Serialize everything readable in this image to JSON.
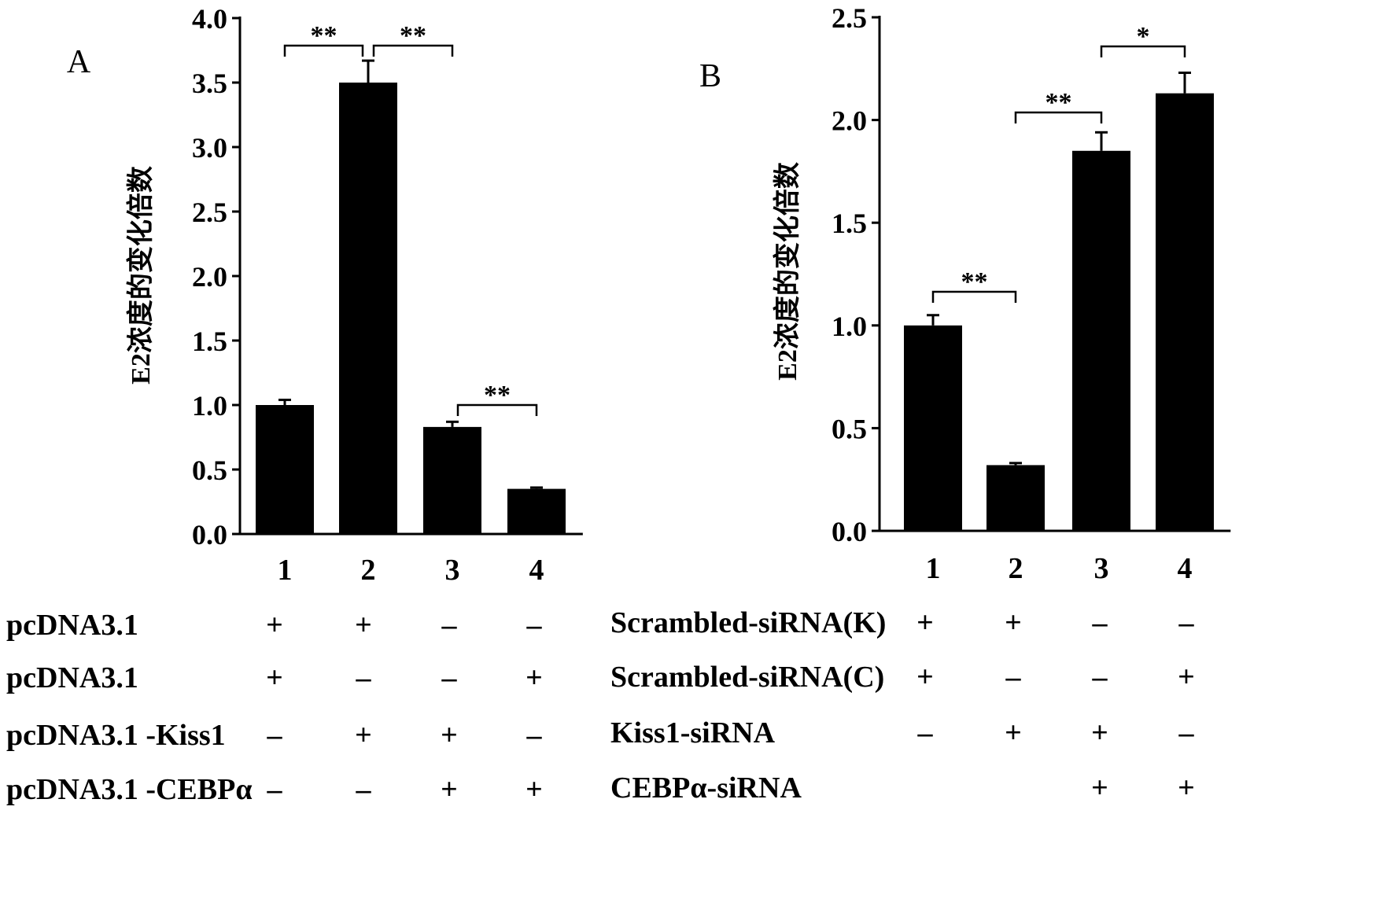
{
  "chart_data": [
    {
      "type": "bar",
      "panel": "A",
      "ylabel": "E2浓度的变化倍数",
      "ylim": [
        0,
        4.0
      ],
      "yticks": [
        "0.0",
        "0.5",
        "1.0",
        "1.5",
        "2.0",
        "2.5",
        "3.0",
        "3.5",
        "4.0"
      ],
      "categories": [
        "1",
        "2",
        "3",
        "4"
      ],
      "values": [
        1.0,
        3.5,
        0.83,
        0.35
      ],
      "errors": [
        0.04,
        0.17,
        0.04,
        0.01
      ],
      "significance": [
        {
          "from": 0,
          "to": 1,
          "label": "**"
        },
        {
          "from": 1,
          "to": 2,
          "label": "**"
        },
        {
          "from": 2,
          "to": 3,
          "label": "**"
        }
      ],
      "conditions": [
        {
          "label": "pcDNA3.1",
          "signs": [
            "+",
            "+",
            "–",
            "–"
          ]
        },
        {
          "label": "pcDNA3.1",
          "signs": [
            "+",
            "–",
            "–",
            "+"
          ]
        },
        {
          "label": "pcDNA3.1 -Kiss1",
          "signs": [
            "–",
            "+",
            "+",
            "–"
          ]
        },
        {
          "label": "pcDNA3.1 -CEBPα",
          "signs": [
            "–",
            "–",
            "+",
            "+"
          ]
        }
      ]
    },
    {
      "type": "bar",
      "panel": "B",
      "ylabel": "E2浓度的变化倍数",
      "ylim": [
        0,
        2.5
      ],
      "yticks": [
        "0.0",
        "0.5",
        "1.0",
        "1.5",
        "2.0",
        "2.5"
      ],
      "categories": [
        "1",
        "2",
        "3",
        "4"
      ],
      "values": [
        1.0,
        0.32,
        1.85,
        2.13
      ],
      "errors": [
        0.05,
        0.01,
        0.09,
        0.1
      ],
      "significance": [
        {
          "from": 0,
          "to": 1,
          "label": "**"
        },
        {
          "from": 2,
          "to": 3,
          "label": "*"
        },
        {
          "from": 1,
          "to": 2,
          "label": "**"
        }
      ],
      "conditions": [
        {
          "label": "Scrambled-siRNA(K)",
          "signs": [
            "+",
            "+",
            "–",
            "–"
          ]
        },
        {
          "label": "Scrambled-siRNA(C)",
          "signs": [
            "+",
            "–",
            "–",
            "+"
          ]
        },
        {
          "label": "Kiss1-siRNA",
          "signs": [
            "–",
            "+",
            "+",
            "–"
          ]
        },
        {
          "label": "CEBPα-siRNA",
          "signs": [
            "",
            "",
            "+",
            "+"
          ]
        }
      ]
    }
  ]
}
